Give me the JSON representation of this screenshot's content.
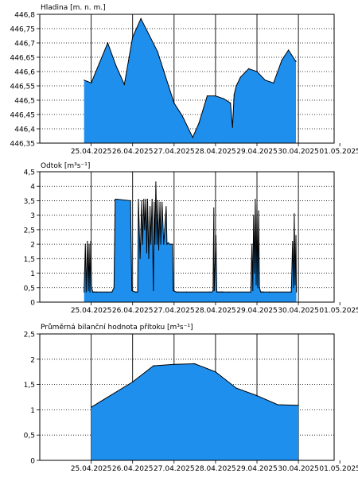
{
  "colors": {
    "fill": "#1f8fee",
    "stroke": "#000000",
    "grid": "#000000"
  },
  "x_labels": [
    "25.04.2025",
    "26.04.2025",
    "27.04.2025",
    "28.04.2025",
    "29.04.2025",
    "30.04.2025",
    "01.05.2025"
  ],
  "chart_data": [
    {
      "type": "area",
      "title": "Hladina [m. n. m.]",
      "xlabel": "",
      "ylabel": "",
      "x_unit": "day offset from 24.04.2025 00:00",
      "ylim": [
        446.35,
        446.8
      ],
      "yticks": [
        446.35,
        446.4,
        446.45,
        446.5,
        446.55,
        446.6,
        446.65,
        446.7,
        446.75,
        446.8
      ],
      "ytick_labels": [
        "446,35",
        "446,4",
        "446,45",
        "446,5",
        "446,55",
        "446,6",
        "446,65",
        "446,7",
        "446,75",
        "446,8"
      ],
      "grid": true,
      "x": [
        0.83,
        0.92,
        1.0,
        1.2,
        1.4,
        1.6,
        1.8,
        2.0,
        2.2,
        2.6,
        3.0,
        3.2,
        3.45,
        3.6,
        3.8,
        4.0,
        4.2,
        4.36,
        4.41,
        4.45,
        4.5,
        4.6,
        4.8,
        5.0,
        5.2,
        5.4,
        5.6,
        5.76,
        5.94
      ],
      "y": [
        446.57,
        446.565,
        446.56,
        446.63,
        446.7,
        446.62,
        446.555,
        446.72,
        446.785,
        446.67,
        446.49,
        446.445,
        446.37,
        446.42,
        446.515,
        446.515,
        446.505,
        446.49,
        446.405,
        446.52,
        446.55,
        446.58,
        446.61,
        446.6,
        446.57,
        446.56,
        446.64,
        446.675,
        446.635
      ]
    },
    {
      "type": "area",
      "title": "Odtok [m³s⁻¹]",
      "xlabel": "",
      "ylabel": "",
      "x_unit": "day offset from 24.04.2025 00:00",
      "ylim": [
        0,
        4.5
      ],
      "yticks": [
        0,
        0.5,
        1,
        1.5,
        2,
        2.5,
        3,
        3.5,
        4,
        4.5
      ],
      "ytick_labels": [
        "0",
        "0,5",
        "1",
        "1,5",
        "2",
        "2,5",
        "3",
        "3,5",
        "4",
        "4,5"
      ],
      "grid": true,
      "x": [
        0.83,
        0.86,
        0.88,
        0.91,
        0.93,
        0.95,
        0.97,
        0.99,
        1.01,
        1.04,
        1.06,
        1.08,
        1.13,
        1.5,
        1.55,
        1.58,
        1.63,
        1.95,
        1.98,
        2.06,
        2.08,
        2.12,
        2.14,
        2.18,
        2.22,
        2.24,
        2.27,
        2.29,
        2.32,
        2.34,
        2.36,
        2.39,
        2.42,
        2.44,
        2.47,
        2.5,
        2.52,
        2.54,
        2.56,
        2.59,
        2.61,
        2.63,
        2.66,
        2.68,
        2.71,
        2.75,
        2.81,
        2.83,
        2.86,
        2.89,
        2.96,
        2.98,
        3.05,
        3.1,
        3.3,
        3.85,
        3.92,
        3.94,
        3.96,
        3.97,
        3.99,
        4.01,
        4.03,
        4.05,
        4.07,
        4.09,
        4.12,
        4.14,
        4.16,
        4.18,
        4.32,
        4.85,
        4.88,
        4.9,
        4.92,
        4.94,
        4.96,
        4.98,
        5.0,
        5.02,
        5.04,
        5.06,
        5.09,
        5.11,
        5.13,
        5.16,
        5.3,
        5.83,
        5.86,
        5.88,
        5.9,
        5.92,
        5.94,
        5.95
      ],
      "y": [
        0.35,
        2.0,
        0.35,
        2.1,
        0.4,
        2.0,
        0.35,
        2.1,
        0.5,
        0.35,
        0.35,
        0.35,
        0.35,
        0.35,
        0.5,
        3.55,
        3.55,
        3.5,
        0.4,
        0.35,
        0.35,
        0.35,
        3.55,
        1.5,
        3.5,
        2.0,
        3.55,
        2.5,
        3.55,
        1.7,
        3.55,
        1.5,
        3.3,
        2.0,
        3.55,
        0.4,
        3.45,
        2.0,
        4.15,
        2.0,
        3.5,
        1.8,
        3.45,
        2.0,
        3.45,
        2.0,
        3.3,
        2.0,
        2.05,
        2.0,
        2.0,
        0.4,
        0.35,
        0.35,
        0.35,
        0.35,
        0.35,
        0.4,
        3.25,
        0.4,
        1.3,
        2.3,
        0.35,
        0.35,
        0.35,
        0.35,
        0.35,
        0.35,
        0.35,
        0.35,
        0.35,
        0.35,
        2.0,
        0.4,
        3.0,
        1.0,
        3.55,
        0.6,
        3.35,
        0.5,
        3.15,
        0.5,
        0.35,
        0.35,
        0.35,
        0.35,
        0.35,
        0.35,
        2.1,
        0.5,
        3.05,
        0.6,
        2.3,
        0.35
      ]
    },
    {
      "type": "area",
      "title": "Průměrná bilanční hodnota přítoku",
      "unit": "[m³s⁻¹]",
      "xlabel": "",
      "ylabel": "",
      "x_unit": "day offset from 24.04.2025 00:00",
      "ylim": [
        0,
        2.5
      ],
      "yticks": [
        0,
        0.5,
        1,
        1.5,
        2,
        2.5
      ],
      "ytick_labels": [
        "0",
        "0,5",
        "1",
        "1,5",
        "2",
        "2,5"
      ],
      "grid": true,
      "x": [
        1.0,
        2.0,
        2.5,
        3.0,
        3.5,
        4.0,
        4.5,
        5.0,
        5.5,
        6.0
      ],
      "y": [
        1.05,
        1.55,
        1.87,
        1.9,
        1.91,
        1.75,
        1.43,
        1.28,
        1.1,
        1.09
      ]
    }
  ]
}
